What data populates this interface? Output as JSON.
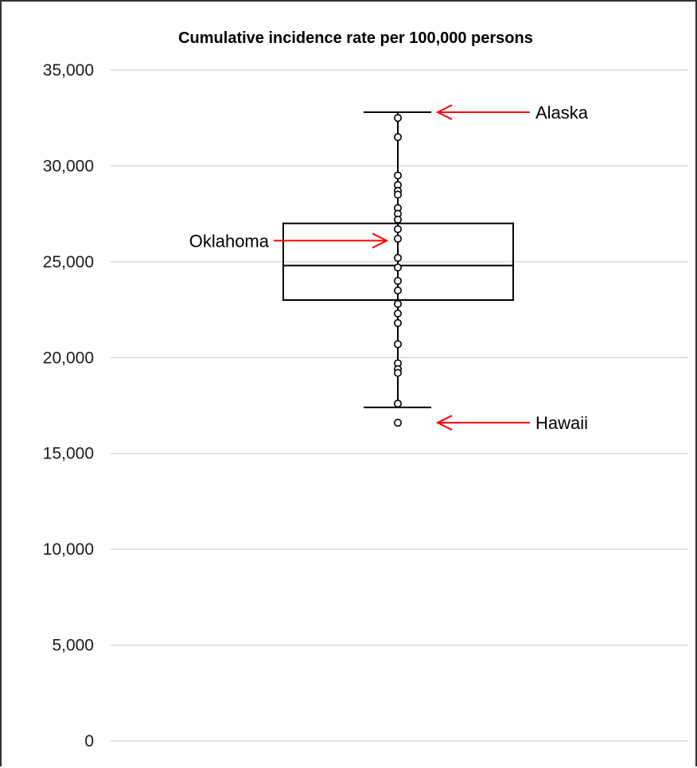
{
  "chart_data": {
    "type": "box",
    "title": "Cumulative incidence rate per 100,000 persons",
    "xlabel": "",
    "ylabel": "",
    "ylim": [
      0,
      35000
    ],
    "yticks": [
      0,
      5000,
      10000,
      15000,
      20000,
      25000,
      30000,
      35000
    ],
    "ytick_labels": [
      "0",
      "5,000",
      "10,000",
      "15,000",
      "20,000",
      "25,000",
      "30,000",
      "35,000"
    ],
    "grid": true,
    "box": {
      "whisker_low": 17400,
      "q1": 23000,
      "median": 24800,
      "q3": 27000,
      "whisker_high": 32800
    },
    "points": [
      32500,
      31500,
      29500,
      29000,
      28700,
      28500,
      27800,
      27500,
      27200,
      26700,
      26200,
      25200,
      24700,
      24000,
      23500,
      22800,
      22300,
      21800,
      20700,
      19700,
      19400,
      19200,
      17600,
      16600
    ],
    "annotations": [
      {
        "text": "Alaska",
        "value": 32800,
        "side": "right"
      },
      {
        "text": "Oklahoma",
        "value": 26100,
        "side": "left"
      },
      {
        "text": "Hawaii",
        "value": 16600,
        "side": "right"
      }
    ],
    "colors": {
      "gridline": "#d9d9d9",
      "box": "#000000",
      "arrow": "#ff0000"
    }
  }
}
